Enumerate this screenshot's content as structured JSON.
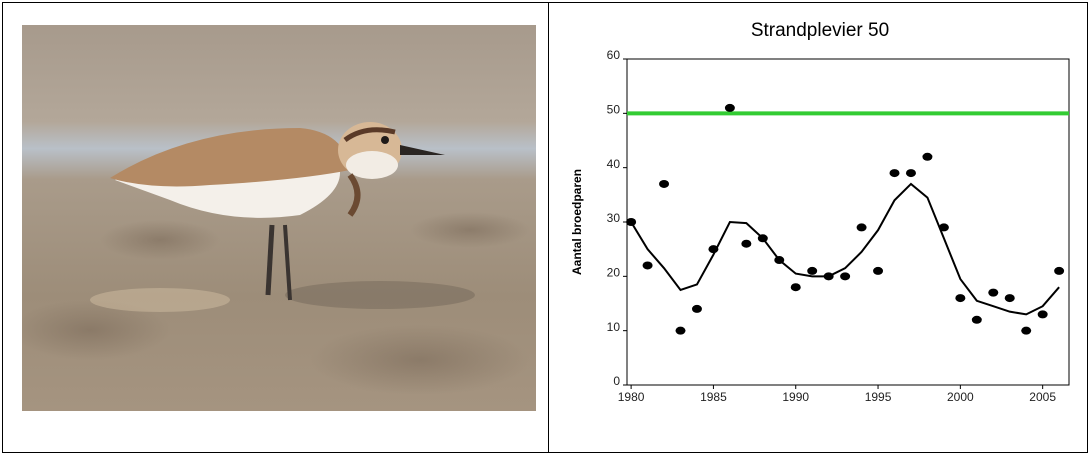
{
  "chart_data": {
    "type": "scatter",
    "title": "Strandplevier 50",
    "y_label": "Aantal broedparen",
    "x": [
      1980,
      1981,
      1982,
      1983,
      1984,
      1985,
      1986,
      1987,
      1988,
      1989,
      1990,
      1991,
      1992,
      1993,
      1994,
      1995,
      1996,
      1997,
      1998,
      1999,
      2000,
      2001,
      2002,
      2003,
      2004,
      2005,
      2006
    ],
    "values": [
      30,
      22,
      37,
      10,
      14,
      25,
      51,
      26,
      27,
      23,
      18,
      21,
      20,
      20,
      29,
      21,
      39,
      39,
      42,
      29,
      16,
      12,
      17,
      16,
      10,
      13,
      21
    ],
    "trend": [
      30,
      25,
      21.5,
      17.5,
      18.5,
      24,
      30,
      29.8,
      27,
      23,
      20.5,
      20,
      20,
      21.5,
      24.5,
      28.5,
      34,
      37,
      34.5,
      27,
      19.5,
      15.5,
      14.5,
      13.5,
      13,
      14.5,
      18
    ],
    "reference": 50,
    "color": "#000000",
    "trend_color": "#000000",
    "reference_color": "#33cc33",
    "xlim": [
      1979.75,
      2006.6
    ],
    "xticks": [
      1980,
      1985,
      1990,
      1995,
      2000,
      2005
    ],
    "ylim": [
      0,
      60
    ],
    "yticks": [
      0,
      10,
      20,
      30,
      40,
      50,
      60
    ]
  }
}
